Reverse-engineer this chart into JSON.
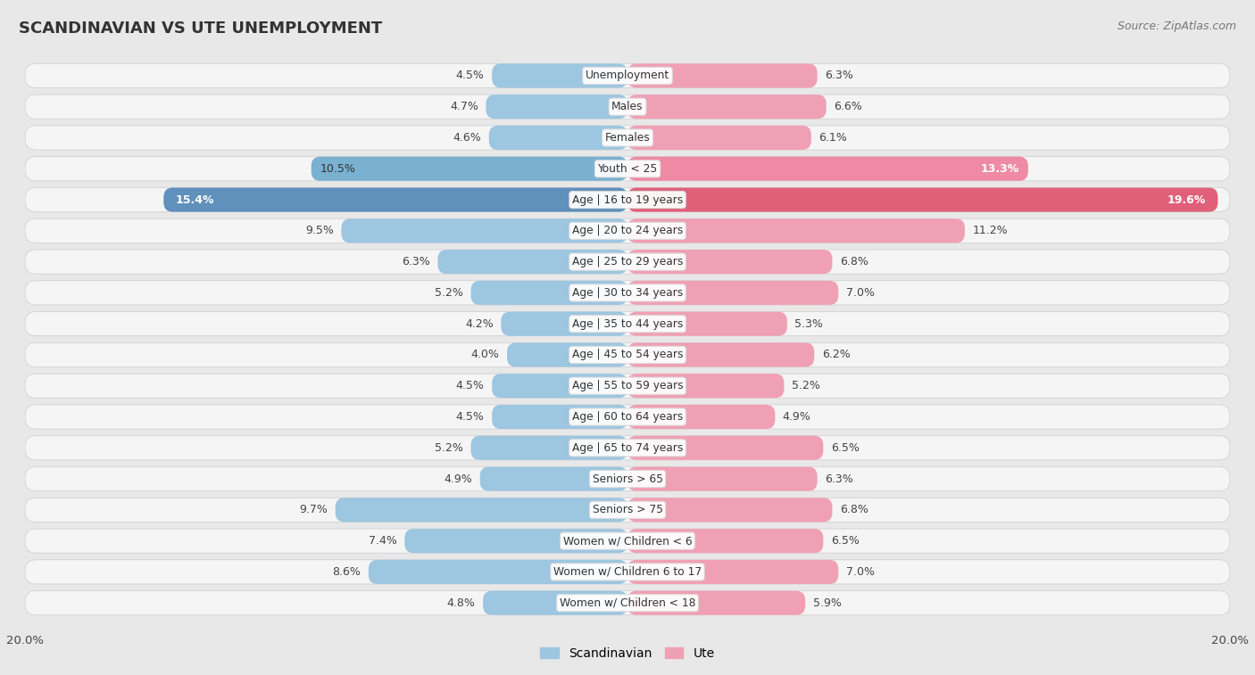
{
  "title": "SCANDINAVIAN VS UTE UNEMPLOYMENT",
  "source": "Source: ZipAtlas.com",
  "categories": [
    "Unemployment",
    "Males",
    "Females",
    "Youth < 25",
    "Age | 16 to 19 years",
    "Age | 20 to 24 years",
    "Age | 25 to 29 years",
    "Age | 30 to 34 years",
    "Age | 35 to 44 years",
    "Age | 45 to 54 years",
    "Age | 55 to 59 years",
    "Age | 60 to 64 years",
    "Age | 65 to 74 years",
    "Seniors > 65",
    "Seniors > 75",
    "Women w/ Children < 6",
    "Women w/ Children 6 to 17",
    "Women w/ Children < 18"
  ],
  "scandinavian": [
    4.5,
    4.7,
    4.6,
    10.5,
    15.4,
    9.5,
    6.3,
    5.2,
    4.2,
    4.0,
    4.5,
    4.5,
    5.2,
    4.9,
    9.7,
    7.4,
    8.6,
    4.8
  ],
  "ute": [
    6.3,
    6.6,
    6.1,
    13.3,
    19.6,
    11.2,
    6.8,
    7.0,
    5.3,
    6.2,
    5.2,
    4.9,
    6.5,
    6.3,
    6.8,
    6.5,
    7.0,
    5.9
  ],
  "scandinavian_color_normal": "#9dc6e0",
  "ute_color_normal": "#f0a0b4",
  "scandinavian_color_highlight_youth": "#7ab0d0",
  "ute_color_highlight_youth": "#ee8aa4",
  "scandinavian_color_highlight_age1619": "#6090bc",
  "ute_color_highlight_age1619": "#e0607a",
  "axis_max": 20.0,
  "bg_color": "#e8e8e8",
  "row_bg": "#f5f5f5",
  "label_color_normal": "#555555",
  "label_color_highlight": "#ffffff",
  "value_color_normal": "#555555",
  "value_color_highlight": "#ffffff"
}
